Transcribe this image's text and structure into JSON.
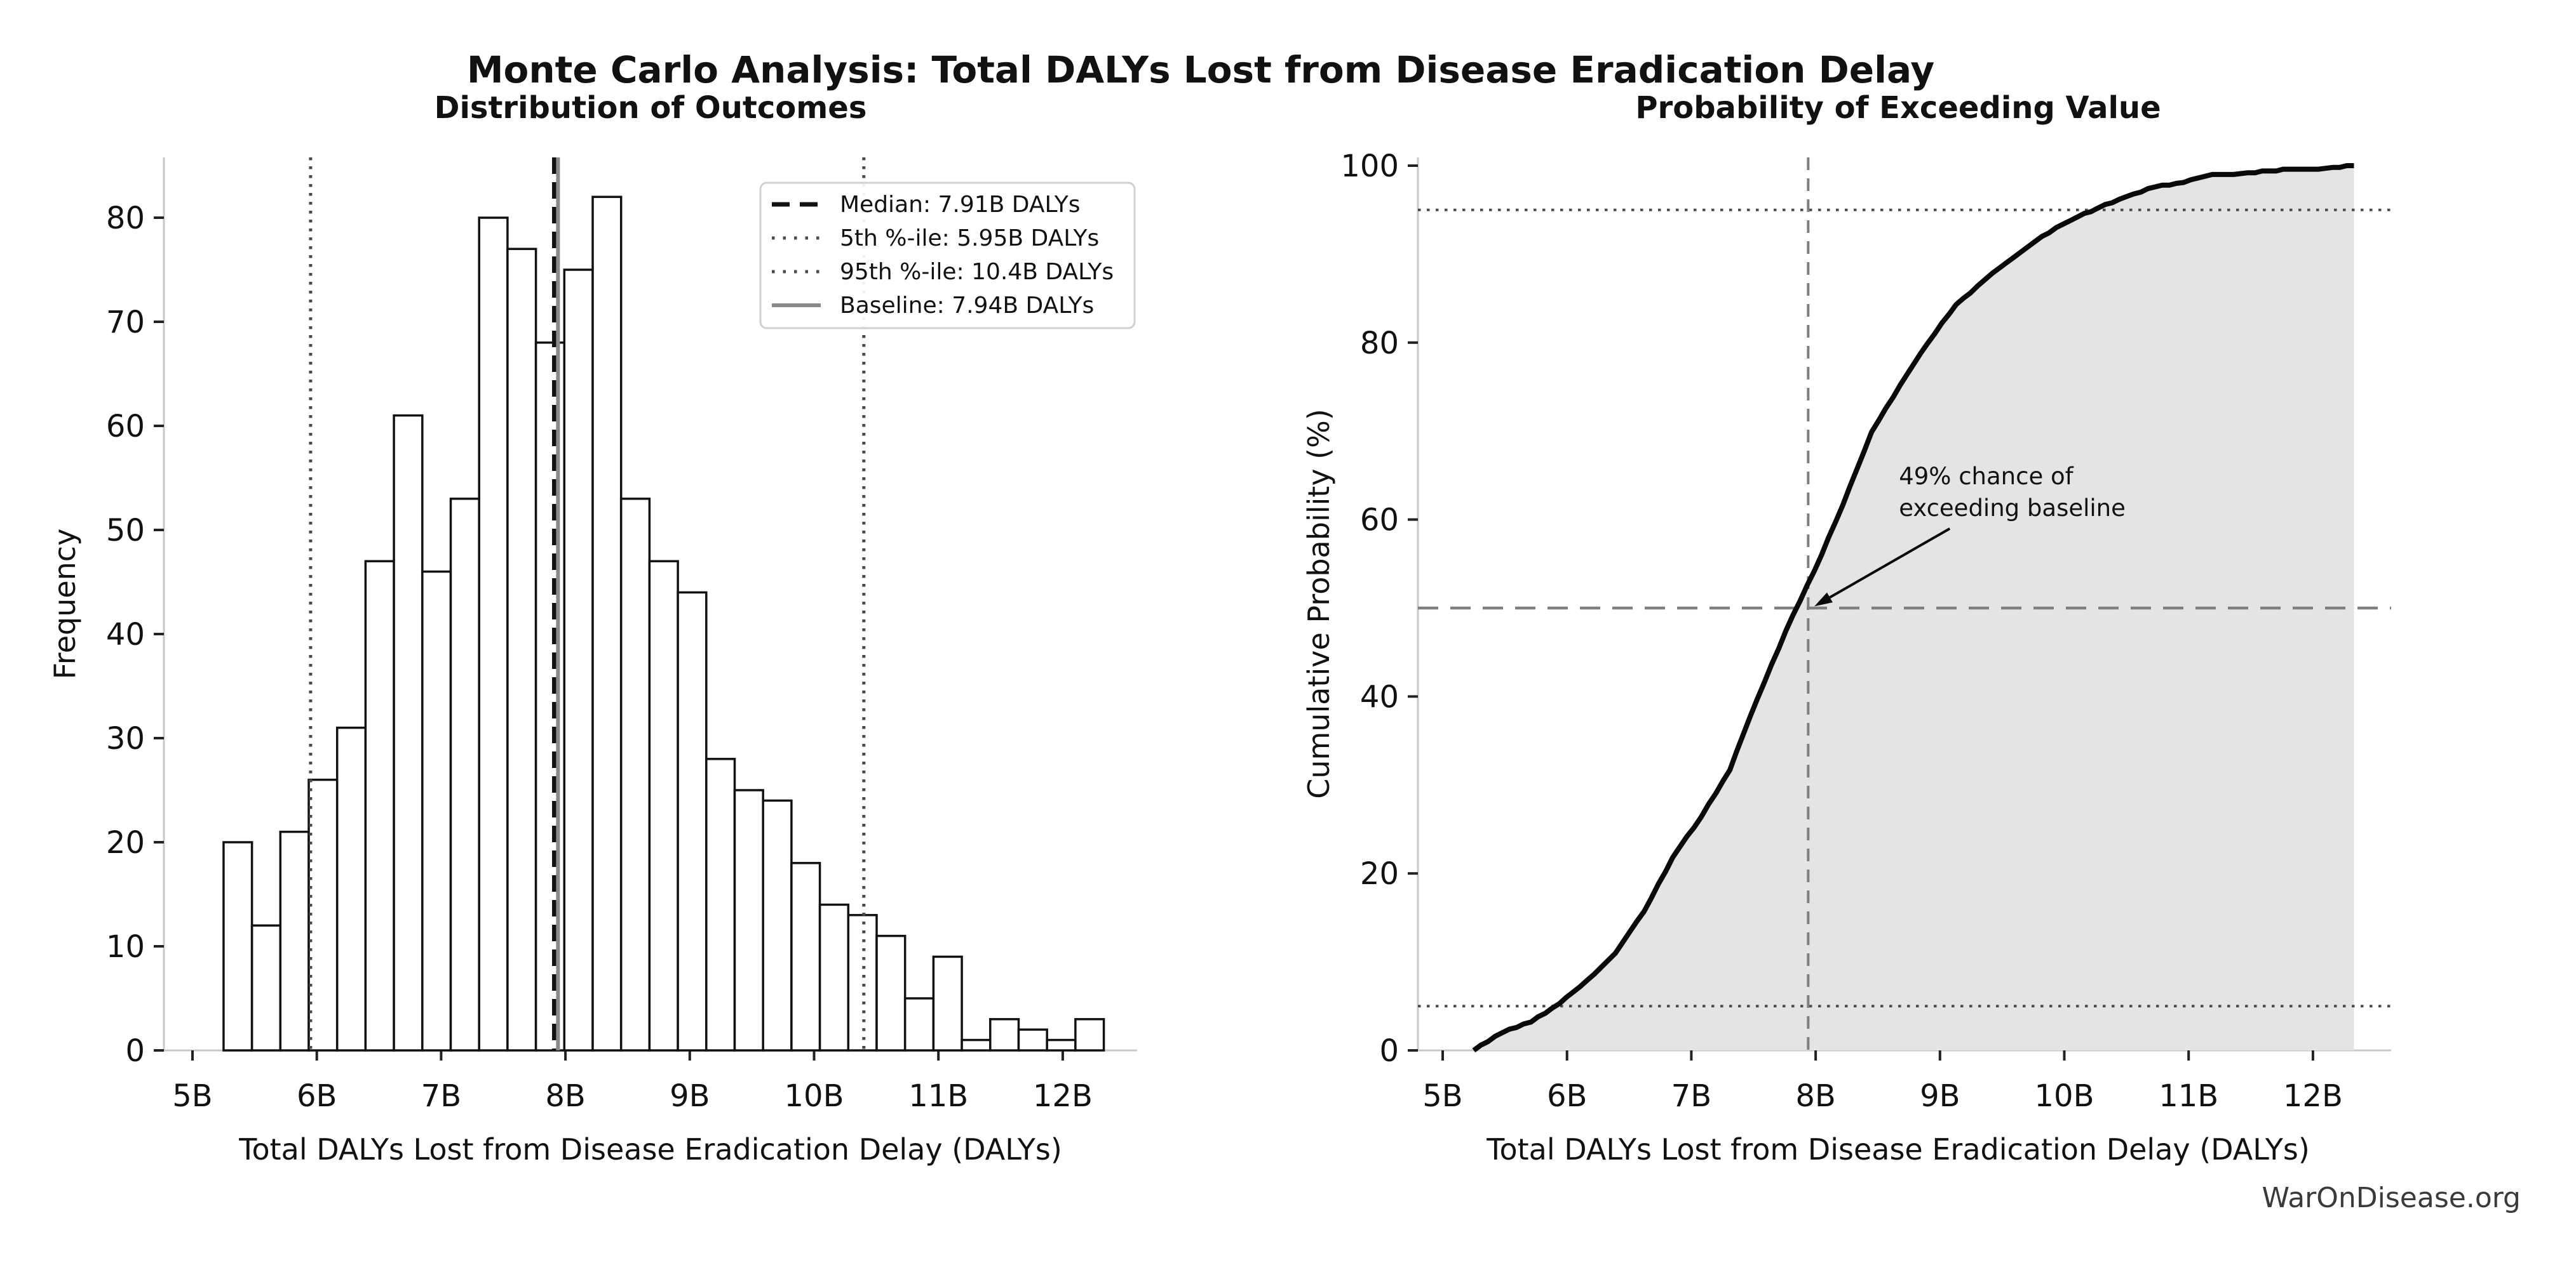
{
  "figure": {
    "suptitle": "Monte Carlo Analysis: Total DALYs Lost from Disease Eradication Delay",
    "watermark": "WarOnDisease.org"
  },
  "colors": {
    "text": "#111111",
    "spine": "#c8c8c8",
    "tick": "#222222",
    "bar_fill": "#ffffff",
    "bar_edge": "#111111",
    "median_line": "#111111",
    "percentile_line": "#4a4a4a",
    "baseline_line": "#8a8a8a",
    "cdf_line": "#0a0a0a",
    "cdf_fill": "#e4e4e4",
    "guide_dashed": "#7f7f7f",
    "legend_border": "#d0d0d0",
    "watermark": "#3a3a3a"
  },
  "chart_data": [
    {
      "type": "bar",
      "subtype": "histogram",
      "title": "Distribution of Outcomes",
      "xlabel": "Total DALYs Lost from Disease Eradication Delay (DALYs)",
      "ylabel": "Frequency",
      "bin_start": 5.25,
      "bin_width": 0.2284,
      "counts": [
        20,
        12,
        21,
        26,
        31,
        47,
        61,
        46,
        53,
        80,
        77,
        68,
        75,
        82,
        53,
        47,
        44,
        28,
        25,
        24,
        18,
        14,
        13,
        11,
        5,
        9,
        1,
        3,
        2,
        1,
        3
      ],
      "total_samples": 1000,
      "x_ticks": [
        "5B",
        "6B",
        "7B",
        "8B",
        "9B",
        "10B",
        "11B",
        "12B"
      ],
      "x_tick_values": [
        5,
        6,
        7,
        8,
        9,
        10,
        11,
        12
      ],
      "y_ticks": [
        0,
        10,
        20,
        30,
        40,
        50,
        60,
        70,
        80
      ],
      "xlim": [
        4.77,
        12.83
      ],
      "ylim": [
        0,
        86
      ],
      "grid": false,
      "legend_position": "upper right",
      "reference_lines": [
        {
          "id": "median",
          "value": 7.91,
          "style": "dashed",
          "color_key": "median_line"
        },
        {
          "id": "p5",
          "value": 5.95,
          "style": "dotted",
          "color_key": "percentile_line"
        },
        {
          "id": "p95",
          "value": 10.4,
          "style": "dotted",
          "color_key": "percentile_line"
        },
        {
          "id": "baseline",
          "value": 7.94,
          "style": "solid",
          "color_key": "baseline_line"
        }
      ],
      "legend": [
        {
          "label": "Median: 7.91B DALYs",
          "swatch": "dashed-black"
        },
        {
          "label": "5th %-ile: 5.95B DALYs",
          "swatch": "dotted-gray"
        },
        {
          "label": "95th %-ile: 10.4B DALYs",
          "swatch": "dotted-gray"
        },
        {
          "label": "Baseline: 7.94B DALYs",
          "swatch": "solid-gray"
        }
      ]
    },
    {
      "type": "line",
      "subtype": "cdf",
      "title": "Probability of Exceeding Value",
      "xlabel": "Total DALYs Lost from Disease Eradication Delay (DALYs)",
      "ylabel": "Cumulative Probability (%)",
      "x": [
        5.25,
        5.48,
        5.71,
        5.94,
        6.16,
        6.39,
        6.62,
        6.85,
        7.08,
        7.31,
        7.53,
        7.76,
        7.99,
        8.22,
        8.45,
        8.68,
        8.9,
        9.13,
        9.36,
        9.59,
        9.82,
        10.05,
        10.27,
        10.5,
        10.73,
        10.96,
        11.19,
        11.42,
        11.65,
        11.87,
        12.1,
        12.33
      ],
      "cumulative_pct": [
        0,
        2.0,
        3.2,
        5.3,
        7.9,
        11.0,
        15.7,
        21.8,
        26.4,
        31.7,
        39.7,
        47.4,
        54.2,
        61.7,
        69.9,
        75.2,
        79.9,
        84.3,
        87.1,
        89.6,
        92.0,
        93.8,
        95.2,
        96.5,
        97.6,
        98.1,
        99.0,
        99.1,
        99.4,
        99.6,
        99.7,
        100.0
      ],
      "x_ticks": [
        "5B",
        "6B",
        "7B",
        "8B",
        "9B",
        "10B",
        "11B",
        "12B"
      ],
      "x_tick_values": [
        5,
        6,
        7,
        8,
        9,
        10,
        11,
        12
      ],
      "y_ticks": [
        0,
        20,
        40,
        60,
        80,
        100
      ],
      "xlim": [
        4.77,
        12.65
      ],
      "ylim": [
        0,
        101
      ],
      "grid": false,
      "area_filled": true,
      "h_guides": [
        {
          "y": 5,
          "style": "dotted",
          "color_key": "percentile_line"
        },
        {
          "y": 50,
          "style": "dashed",
          "color_key": "guide_dashed"
        },
        {
          "y": 95,
          "style": "dotted",
          "color_key": "percentile_line"
        }
      ],
      "v_guide": {
        "x": 7.94,
        "style": "dashed",
        "color_key": "guide_dashed"
      },
      "annotation": {
        "line1": "49% chance of",
        "line2": "exceeding baseline",
        "text_x": 8.67,
        "text_y_pct": 64.0,
        "arrow_tip_x": 7.99,
        "arrow_tip_y_pct": 50.2
      }
    }
  ]
}
